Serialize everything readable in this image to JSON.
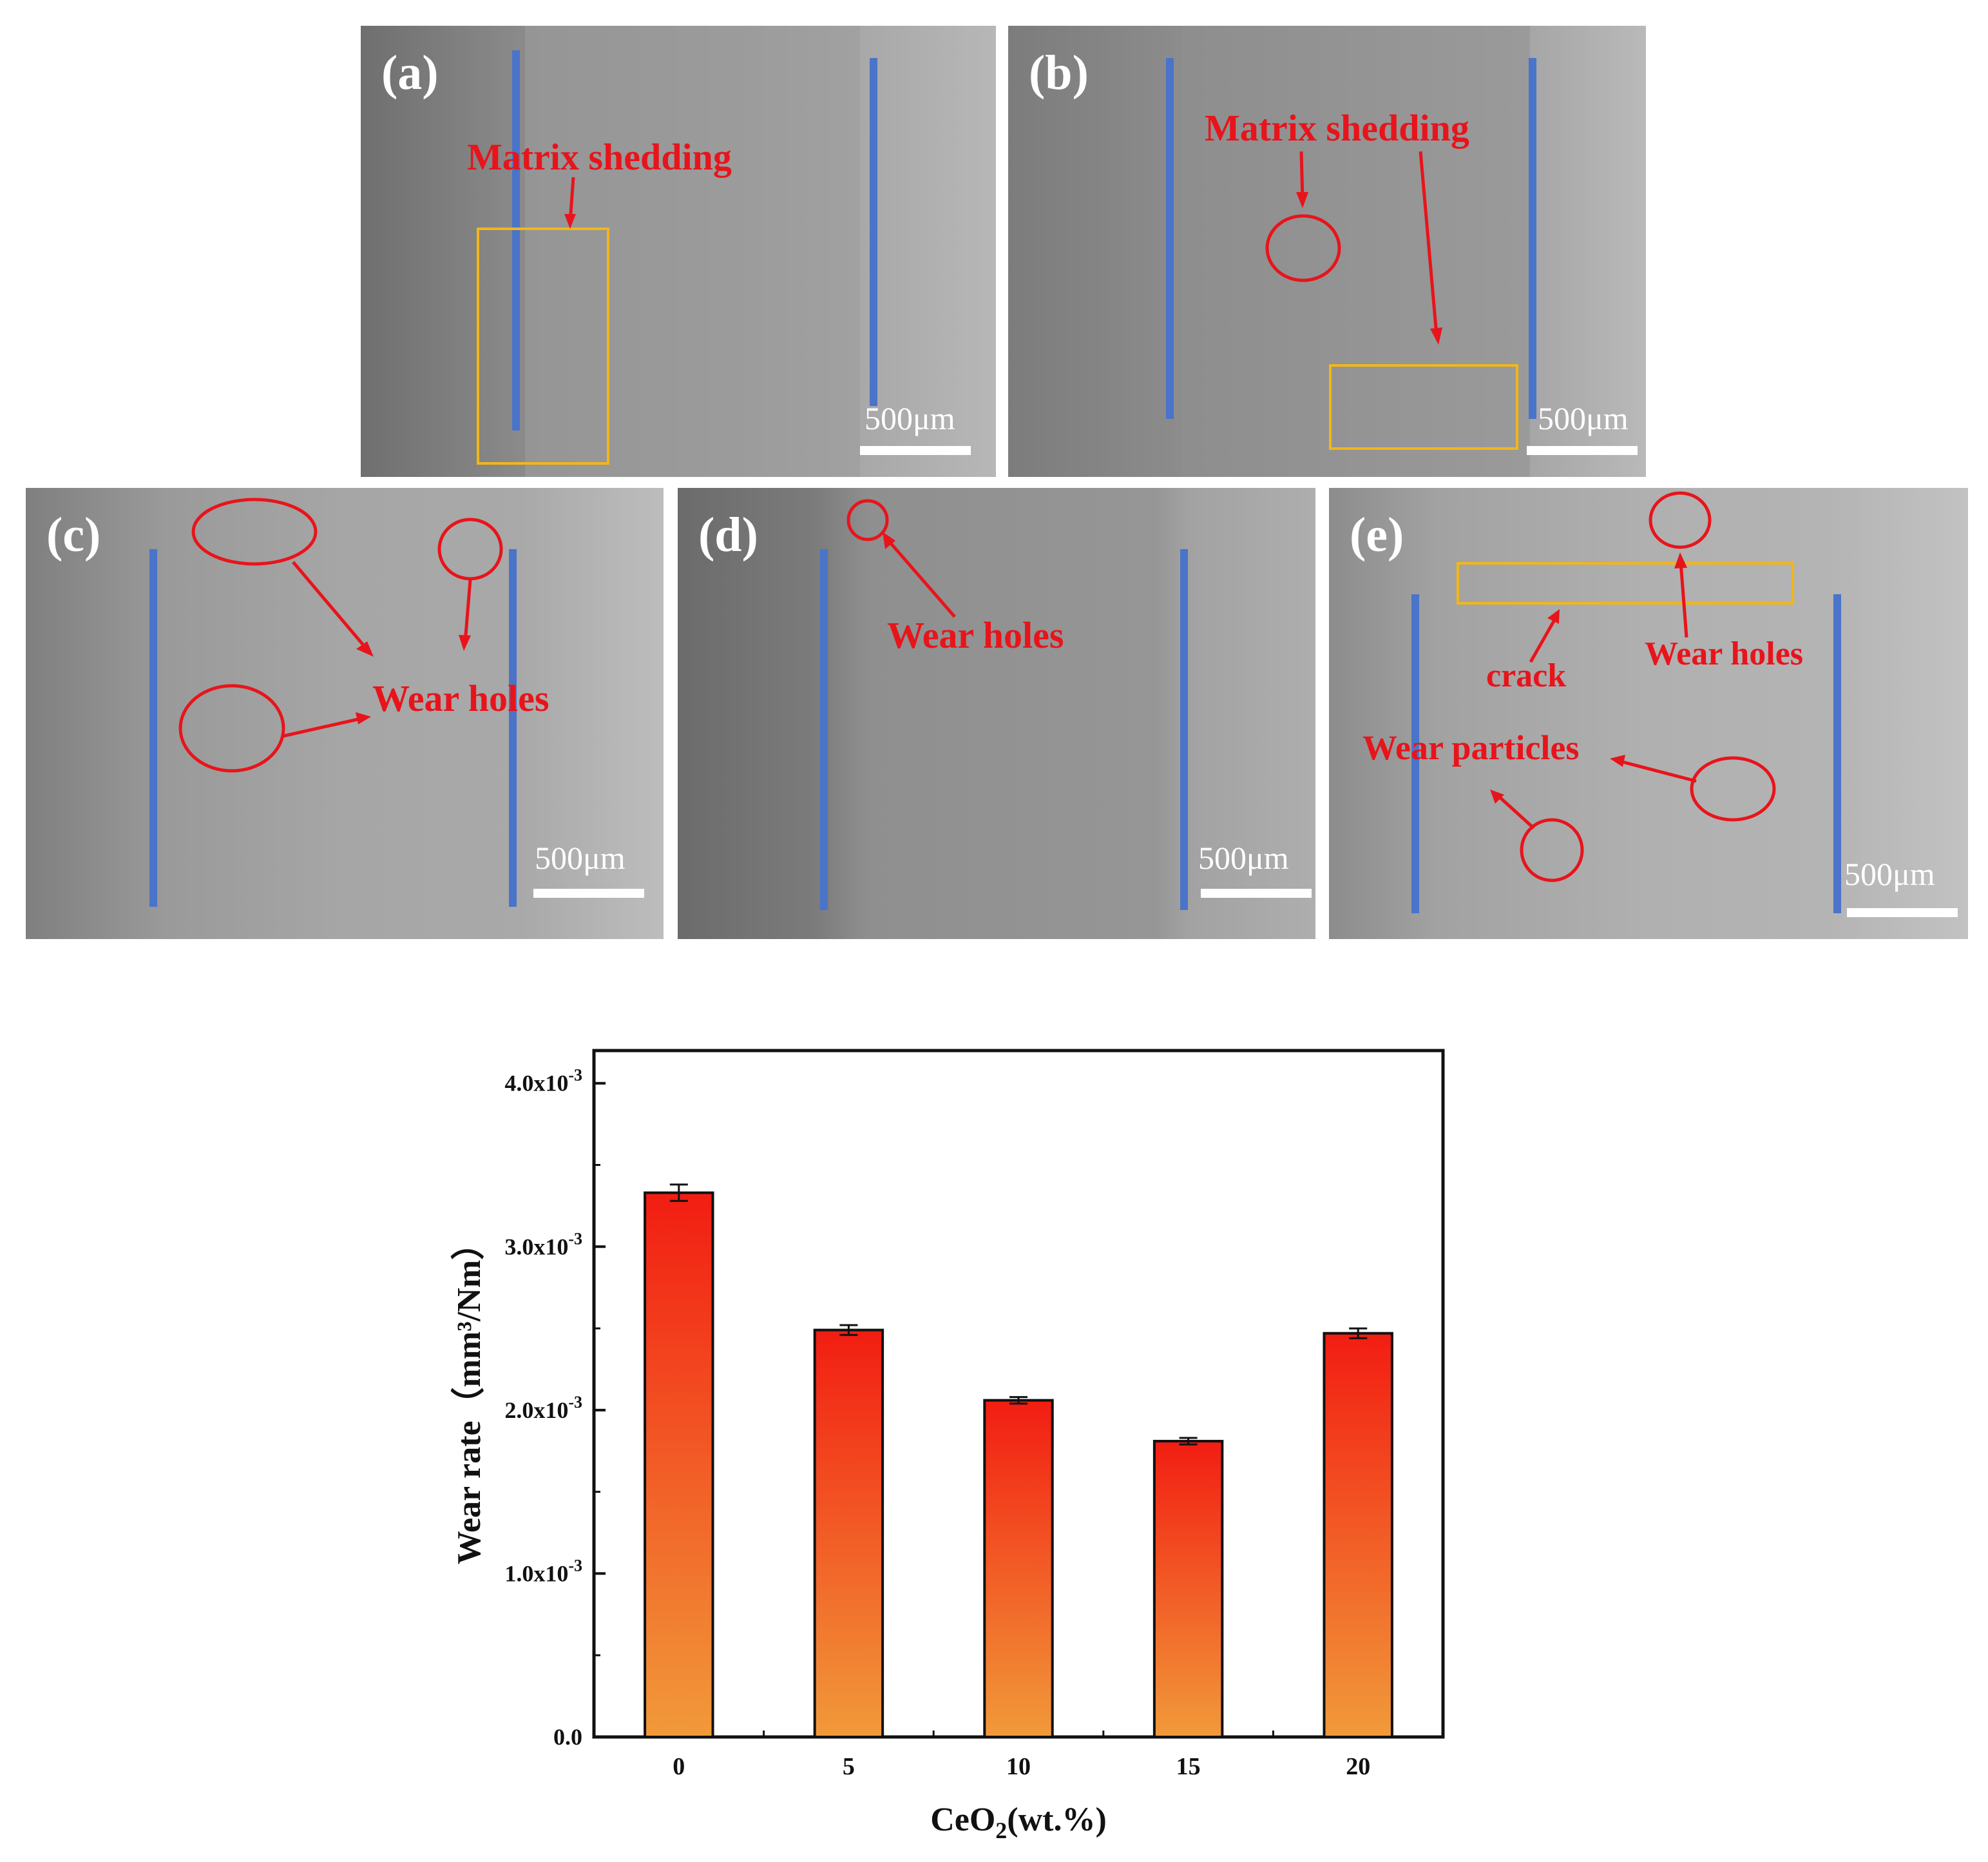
{
  "panels": {
    "a": {
      "label": "(a)",
      "notes": [
        "Matrix shedding"
      ],
      "scale": "500μm"
    },
    "b": {
      "label": "(b)",
      "notes": [
        "Matrix shedding"
      ],
      "scale": "500μm"
    },
    "c": {
      "label": "(c)",
      "notes": [
        "Wear holes"
      ],
      "scale": "500μm"
    },
    "d": {
      "label": "(d)",
      "notes": [
        "Wear holes"
      ],
      "scale": "500μm"
    },
    "e": {
      "label": "(e)",
      "notes": [
        "crack",
        "Wear holes",
        "Wear particles"
      ],
      "scale": "500μm"
    }
  },
  "chart_data": {
    "type": "bar",
    "categories": [
      "0",
      "5",
      "10",
      "15",
      "20"
    ],
    "values": [
      0.00333,
      0.00249,
      0.00206,
      0.00181,
      0.00247
    ],
    "errors": [
      5e-05,
      3e-05,
      2e-05,
      2e-05,
      3e-05
    ],
    "ylim": [
      0,
      0.0042
    ],
    "yticks": [
      {
        "value": 0.0,
        "label": "0.0"
      },
      {
        "value": 0.001,
        "label": "1.0x10",
        "exp": "-3"
      },
      {
        "value": 0.002,
        "label": "2.0x10",
        "exp": "-3"
      },
      {
        "value": 0.003,
        "label": "3.0x10",
        "exp": "-3"
      },
      {
        "value": 0.004,
        "label": "4.0x10",
        "exp": "-3"
      }
    ],
    "ylabel": "Wear rate（mm³/Nm）",
    "xlabel": "CeO₂(wt.%)",
    "bar_gradient": {
      "top": "#f21d12",
      "bottom": "#f19a3a"
    }
  }
}
